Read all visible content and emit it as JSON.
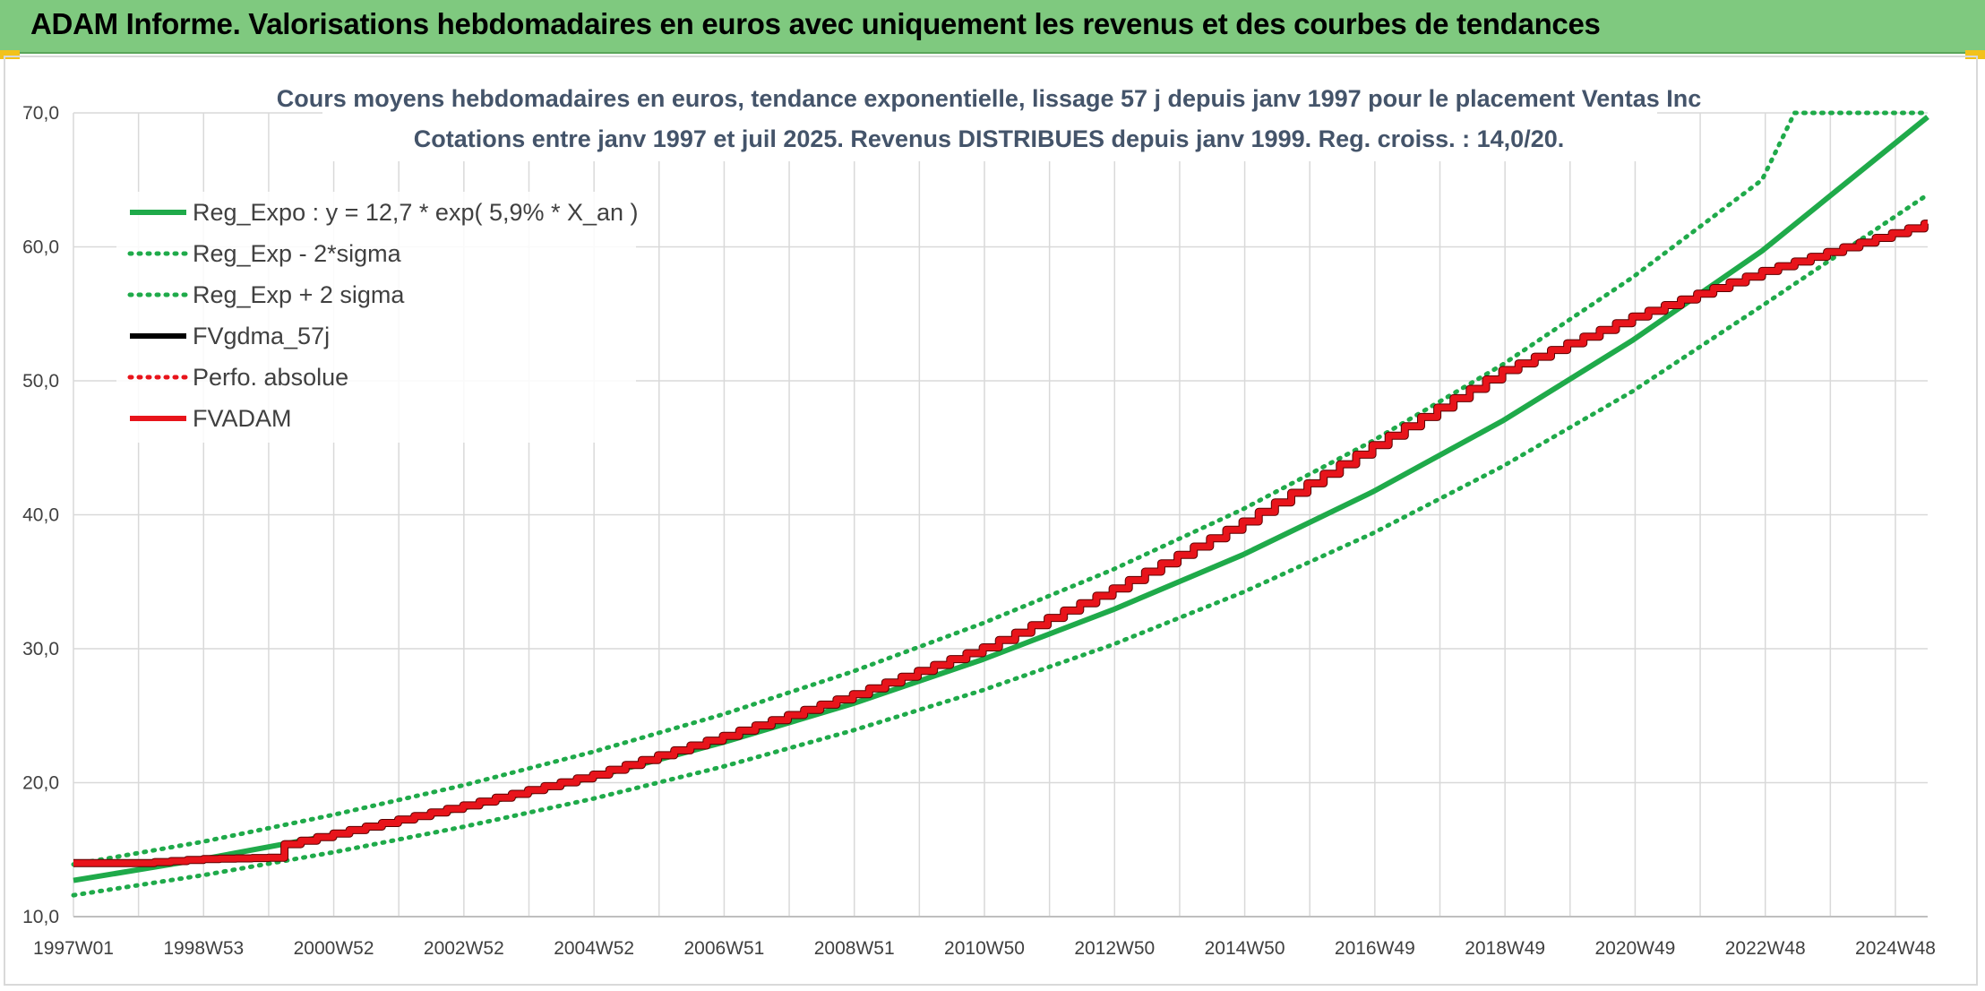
{
  "header": {
    "title": "ADAM Informe. Valorisations hebdomadaires en euros avec uniquement les revenus et des courbes de tendances"
  },
  "colors": {
    "green": "#1faa4a",
    "red": "#e8141b",
    "black": "#000000",
    "grid": "#d9d9d9",
    "banner": "#7fc97f"
  },
  "chart_data": {
    "type": "line",
    "title": "Cours moyens hebdomadaires en euros, tendance exponentielle, lissage 57 j depuis janv 1997 pour le placement Ventas Inc",
    "subtitle": "Cotations entre janv 1997 et juil 2025. Revenus DISTRIBUES depuis janv 1999. Reg. croiss. : 14,0/20.",
    "x_tick_labels": [
      "1997W01",
      "1998W53",
      "2000W52",
      "2002W52",
      "2004W52",
      "2006W51",
      "2008W51",
      "2010W50",
      "2012W50",
      "2014W50",
      "2016W49",
      "2018W49",
      "2020W49",
      "2022W48",
      "2024W48"
    ],
    "x_range_years": [
      1997.0,
      2025.55
    ],
    "ylim": [
      10,
      70
    ],
    "y_ticks": [
      "10,0",
      "20,0",
      "30,0",
      "40,0",
      "50,0",
      "60,0",
      "70,0"
    ],
    "grid": true,
    "legend_position": "top-left",
    "legend": [
      {
        "label": "Reg_Expo : y = 12,7 * exp( 5,9% *  X_an )",
        "style": "solid",
        "color": "#1faa4a"
      },
      {
        "label": "Reg_Exp - 2*sigma",
        "style": "dotted",
        "color": "#1faa4a"
      },
      {
        "label": "Reg_Exp + 2 sigma",
        "style": "dotted",
        "color": "#1faa4a"
      },
      {
        "label": "FVgdma_57j",
        "style": "solid",
        "color": "#000000"
      },
      {
        "label": "Perfo. absolue",
        "style": "dotted",
        "color": "#e8141b"
      },
      {
        "label": "FVADAM",
        "style": "solid",
        "color": "#e8141b"
      }
    ],
    "series": [
      {
        "name": "Reg_Expo : y = 12,7 * exp( 5,9% *  X_an )",
        "x": [
          1997,
          1999,
          2001,
          2003,
          2005,
          2007,
          2009,
          2011,
          2013,
          2015,
          2017,
          2019,
          2021,
          2023,
          2025.55
        ],
        "values": [
          12.7,
          14.3,
          16.1,
          18.1,
          20.4,
          23.0,
          25.9,
          29.2,
          32.9,
          37.0,
          41.7,
          47.0,
          53.0,
          59.7,
          69.7
        ]
      },
      {
        "name": "Reg_Exp - 2*sigma",
        "x": [
          1997,
          1999,
          2001,
          2003,
          2005,
          2007,
          2009,
          2011,
          2013,
          2015,
          2017,
          2019,
          2021,
          2023,
          2025.55
        ],
        "values": [
          11.6,
          13.1,
          14.8,
          16.7,
          18.8,
          21.2,
          23.9,
          26.9,
          30.3,
          34.2,
          38.6,
          43.6,
          49.2,
          55.6,
          63.9
        ]
      },
      {
        "name": "Reg_Exp + 2 sigma",
        "x": [
          1997,
          1999,
          2001,
          2003,
          2005,
          2007,
          2009,
          2011,
          2013,
          2015,
          2017,
          2019,
          2021,
          2023,
          2023.5,
          2025.55
        ],
        "values": [
          13.9,
          15.6,
          17.6,
          19.8,
          22.3,
          25.1,
          28.3,
          31.9,
          35.9,
          40.4,
          45.5,
          51.2,
          57.7,
          65.0,
          70.0,
          70.0
        ]
      },
      {
        "name": "FVADAM",
        "x": [
          1997,
          1998,
          1999,
          2000,
          2000.05,
          2001,
          2003,
          2005,
          2007,
          2009,
          2011,
          2013,
          2015,
          2017,
          2019,
          2021,
          2023,
          2025.55
        ],
        "values": [
          14.0,
          14.0,
          14.3,
          14.4,
          15.2,
          16.2,
          18.3,
          20.6,
          23.5,
          26.6,
          30.1,
          34.5,
          39.5,
          45.2,
          50.8,
          54.8,
          58.2,
          61.8
        ]
      }
    ]
  }
}
